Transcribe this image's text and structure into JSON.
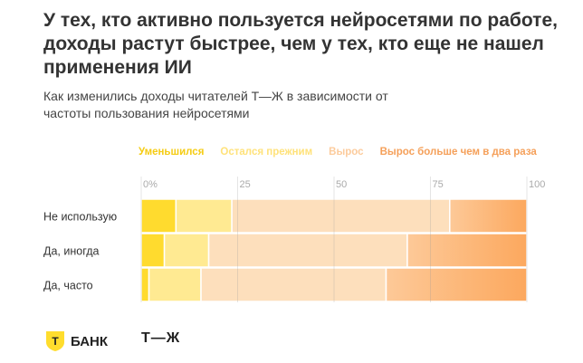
{
  "title": "У тех, кто активно пользуется нейросетями по работе, доходы растут быстрее, чем у тех, кто еще не нашел применения ИИ",
  "subtitle": "Как изменились доходы читателей Т—Ж в зависимости от частоты пользования нейросетями",
  "logos": {
    "bank": "БАНК",
    "tzh": "Т—Ж",
    "shield_letter": "Т"
  },
  "chart_data": {
    "type": "bar",
    "stacked": true,
    "orientation": "horizontal",
    "categories": [
      "Не использую",
      "Да, иногда",
      "Да, часто"
    ],
    "series": [
      {
        "name": "Уменьшился",
        "color": "#FFDB2E",
        "values": [
          9,
          6,
          2
        ]
      },
      {
        "name": "Остался прежним",
        "color": "#FFEA92",
        "values": [
          14.5,
          11.5,
          13.5
        ]
      },
      {
        "name": "Вырос",
        "color": "#FDDFBC",
        "values": [
          56.5,
          51.5,
          48
        ]
      },
      {
        "name": "Вырос больше чем в два раза",
        "color": "#FCA85E",
        "values": [
          20,
          31,
          36.5
        ]
      }
    ],
    "legend_colors": [
      "#F5CC14",
      "#FFE27A",
      "#FCCB9C",
      "#F5A05A"
    ],
    "xticks": [
      "0%",
      "25",
      "50",
      "75",
      "100"
    ],
    "xlim": [
      0,
      100
    ],
    "grid": true,
    "legend_position": "top"
  }
}
